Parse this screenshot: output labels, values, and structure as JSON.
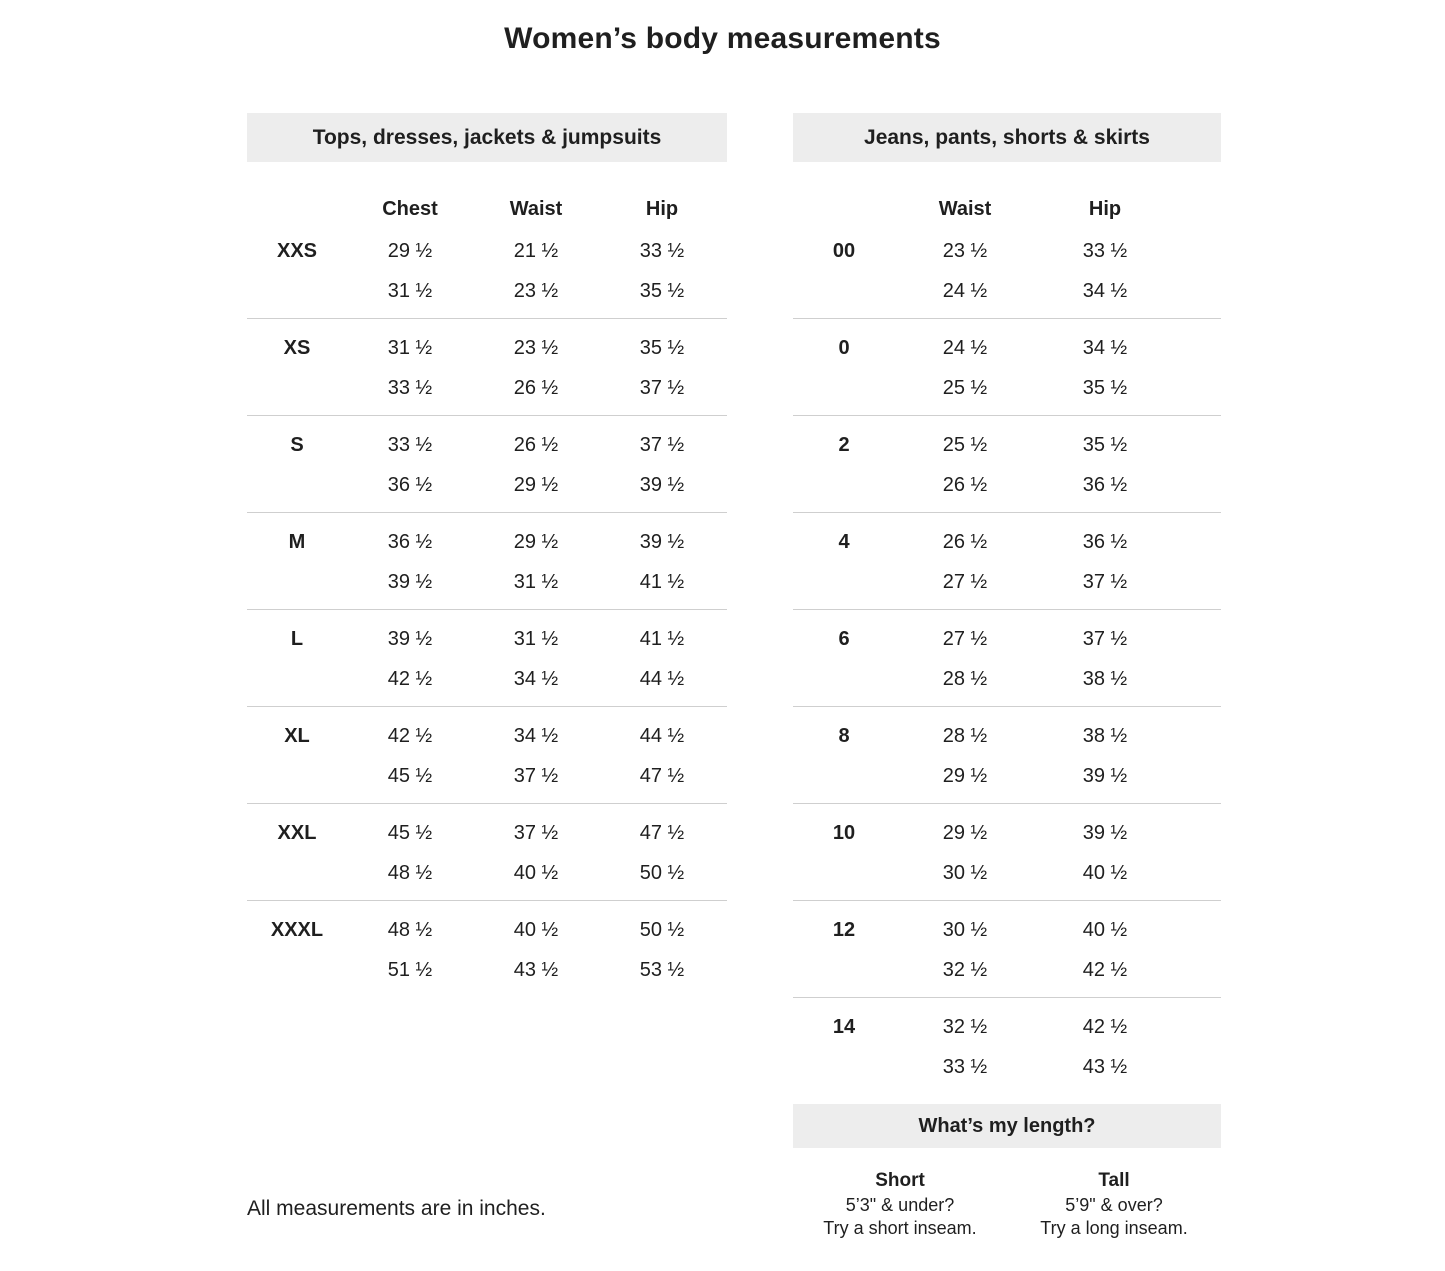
{
  "page": {
    "title": "Women’s body measurements",
    "footnote": "All measurements are in inches."
  },
  "tops_table": {
    "header": "Tops, dresses, jackets & jumpsuits",
    "columns": [
      "Chest",
      "Waist",
      "Hip"
    ],
    "rows": [
      {
        "size": "XXS",
        "min": [
          "29 ½",
          "21 ½",
          "33 ½"
        ],
        "max": [
          "31 ½",
          "23 ½",
          "35 ½"
        ]
      },
      {
        "size": "XS",
        "min": [
          "31 ½",
          "23 ½",
          "35 ½"
        ],
        "max": [
          "33 ½",
          "26 ½",
          "37 ½"
        ]
      },
      {
        "size": "S",
        "min": [
          "33 ½",
          "26 ½",
          "37 ½"
        ],
        "max": [
          "36 ½",
          "29 ½",
          "39 ½"
        ]
      },
      {
        "size": "M",
        "min": [
          "36 ½",
          "29 ½",
          "39 ½"
        ],
        "max": [
          "39 ½",
          "31 ½",
          "41 ½"
        ]
      },
      {
        "size": "L",
        "min": [
          "39 ½",
          "31 ½",
          "41 ½"
        ],
        "max": [
          "42 ½",
          "34 ½",
          "44 ½"
        ]
      },
      {
        "size": "XL",
        "min": [
          "42 ½",
          "34 ½",
          "44 ½"
        ],
        "max": [
          "45 ½",
          "37 ½",
          "47 ½"
        ]
      },
      {
        "size": "XXL",
        "min": [
          "45 ½",
          "37 ½",
          "47 ½"
        ],
        "max": [
          "48 ½",
          "40 ½",
          "50 ½"
        ]
      },
      {
        "size": "XXXL",
        "min": [
          "48 ½",
          "40 ½",
          "50 ½"
        ],
        "max": [
          "51 ½",
          "43 ½",
          "53 ½"
        ]
      }
    ]
  },
  "bottoms_table": {
    "header": "Jeans, pants, shorts & skirts",
    "columns": [
      "Waist",
      "Hip"
    ],
    "rows": [
      {
        "size": "00",
        "min": [
          "23 ½",
          "33 ½"
        ],
        "max": [
          "24 ½",
          "34 ½"
        ]
      },
      {
        "size": "0",
        "min": [
          "24 ½",
          "34 ½"
        ],
        "max": [
          "25 ½",
          "35 ½"
        ]
      },
      {
        "size": "2",
        "min": [
          "25 ½",
          "35 ½"
        ],
        "max": [
          "26 ½",
          "36 ½"
        ]
      },
      {
        "size": "4",
        "min": [
          "26 ½",
          "36 ½"
        ],
        "max": [
          "27 ½",
          "37 ½"
        ]
      },
      {
        "size": "6",
        "min": [
          "27 ½",
          "37 ½"
        ],
        "max": [
          "28 ½",
          "38 ½"
        ]
      },
      {
        "size": "8",
        "min": [
          "28 ½",
          "38 ½"
        ],
        "max": [
          "29 ½",
          "39 ½"
        ]
      },
      {
        "size": "10",
        "min": [
          "29 ½",
          "39 ½"
        ],
        "max": [
          "30 ½",
          "40 ½"
        ]
      },
      {
        "size": "12",
        "min": [
          "30 ½",
          "40 ½"
        ],
        "max": [
          "32 ½",
          "42 ½"
        ]
      },
      {
        "size": "14",
        "min": [
          "32 ½",
          "42 ½"
        ],
        "max": [
          "33 ½",
          "43 ½"
        ]
      }
    ]
  },
  "length_section": {
    "header": "What’s my length?",
    "options": [
      {
        "label": "Short",
        "line1": "5’3\" & under?",
        "line2": "Try a short inseam."
      },
      {
        "label": "Tall",
        "line1": "5’9\" & over?",
        "line2": "Try a long inseam."
      }
    ]
  },
  "colors": {
    "section_header_bg": "#ededed",
    "divider": "#cfcfcf",
    "text": "#1f1f1f"
  }
}
